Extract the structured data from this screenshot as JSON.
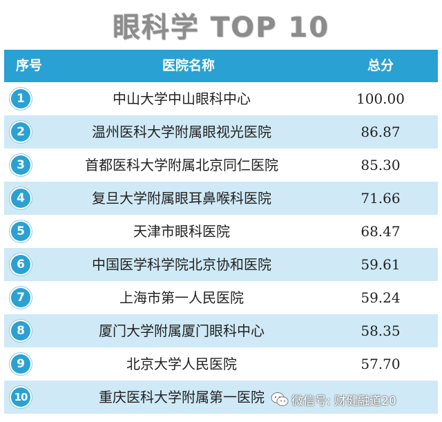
{
  "title": "眼科学 TOP 10",
  "colors": {
    "header_bg": "#2aa1d3",
    "stripe_bg": "#cfe9f6",
    "badge_bg": "#2aa1d3"
  },
  "headers": {
    "rank": "序号",
    "name": "医院名称",
    "score": "总分"
  },
  "rows": [
    {
      "rank": "1",
      "name": "中山大学中山眼科中心",
      "score": "100.00"
    },
    {
      "rank": "2",
      "name": "温州医科大学附属眼视光医院",
      "score": "86.87"
    },
    {
      "rank": "3",
      "name": "首都医科大学附属北京同仁医院",
      "score": "85.30"
    },
    {
      "rank": "4",
      "name": "复旦大学附属眼耳鼻喉科医院",
      "score": "71.66"
    },
    {
      "rank": "5",
      "name": "天津市眼科医院",
      "score": "68.47"
    },
    {
      "rank": "6",
      "name": "中国医学科学院北京协和医院",
      "score": "59.61"
    },
    {
      "rank": "7",
      "name": "上海市第一人民医院",
      "score": "59.24"
    },
    {
      "rank": "8",
      "name": "厦门大学附属厦门眼科中心",
      "score": "58.35"
    },
    {
      "rank": "9",
      "name": "北京大学人民医院",
      "score": "57.70"
    },
    {
      "rank": "10",
      "name": "重庆医科大学附属第一医院",
      "score": ""
    }
  ],
  "watermark": {
    "icon": "wechat-icon",
    "text": "微信号: 财健融道20"
  }
}
